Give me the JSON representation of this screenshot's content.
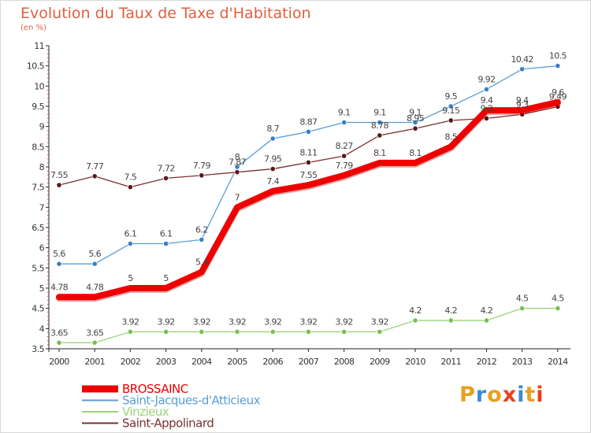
{
  "title": "Evolution du Taux de Taxe d'Habitation",
  "subtitle": "(en %)",
  "logo": {
    "text": "Proxiti",
    "letter_colors": [
      "#e8a020",
      "#3a8ad8",
      "#e8a020",
      "#e8401e",
      "#3a8ad8",
      "#e8a020",
      "#e8401e"
    ]
  },
  "chart_data": {
    "type": "line",
    "title": "Evolution du Taux de Taxe d'Habitation",
    "subtitle": "(en %)",
    "xlabel": "",
    "ylabel": "",
    "ylim": [
      3.5,
      11
    ],
    "grid": false,
    "legend_position": "bottom-left",
    "x": [
      "2000",
      "2001",
      "2002",
      "2003",
      "2004",
      "2005",
      "2006",
      "2007",
      "2008",
      "2009",
      "2010",
      "2011",
      "2012",
      "2013",
      "2014"
    ],
    "yticks": [
      "3.5",
      "4",
      "4.5",
      "5",
      "5.5",
      "6",
      "6.5",
      "7",
      "7.5",
      "8",
      "8.5",
      "9",
      "9.5",
      "10",
      "10.5",
      "11"
    ],
    "series": [
      {
        "name": "Saint-Jacques-d'Atticieux",
        "color": "#5a9ed6",
        "point_color": "#3a80c8",
        "width": 1.3,
        "values": [
          5.6,
          5.6,
          6.1,
          6.1,
          6.2,
          8,
          8.7,
          8.87,
          9.1,
          9.1,
          9.1,
          9.5,
          9.92,
          10.42,
          10.5
        ],
        "labels": [
          "5.6",
          "5.6",
          "6.1",
          "6.1",
          "6.2",
          "8",
          "8.7",
          "8.87",
          "9.1",
          "9.1",
          "9.1",
          "9.5",
          "9.92",
          "10.42",
          "10.5"
        ]
      },
      {
        "name": "Vinzieux",
        "color": "#99d27a",
        "point_color": "#78c04e",
        "width": 1.3,
        "values": [
          3.65,
          3.65,
          3.92,
          3.92,
          3.92,
          3.92,
          3.92,
          3.92,
          3.92,
          3.92,
          4.2,
          4.2,
          4.2,
          4.5,
          4.5
        ],
        "labels": [
          "3.65",
          "3.65",
          "3.92",
          "3.92",
          "3.92",
          "3.92",
          "3.92",
          "3.92",
          "3.92",
          "3.92",
          "4.2",
          "4.2",
          "4.2",
          "4.5",
          "4.5"
        ]
      },
      {
        "name": "Saint-Appolinard",
        "color": "#7a3030",
        "point_color": "#5a1818",
        "width": 1.3,
        "values": [
          7.55,
          7.77,
          7.5,
          7.72,
          7.79,
          7.87,
          7.95,
          8.11,
          8.27,
          8.78,
          8.95,
          9.15,
          9.2,
          9.3,
          9.49
        ],
        "labels": [
          "7.55",
          "7.77",
          "7.5",
          "7.72",
          "7.79",
          "7.87",
          "7.95",
          "8.11",
          "8.27",
          "8.78",
          "8.95",
          "9.15",
          "9.2",
          "9.3",
          "9.49"
        ]
      },
      {
        "name": "BROSSAINC",
        "color": "#ee0000",
        "point_color": "#ee0000",
        "width": 8,
        "values": [
          4.78,
          4.78,
          5,
          5,
          5.4,
          7,
          7.4,
          7.55,
          7.79,
          8.1,
          8.1,
          8.5,
          9.4,
          9.4,
          9.6
        ],
        "labels": [
          "4.78",
          "4.78",
          "5",
          "5",
          "5.4",
          "7",
          "7.4",
          "7.55",
          "7.79",
          "8.1",
          "8.1",
          "8.5",
          "9.4",
          "9.4",
          "9.6"
        ]
      }
    ],
    "legend_order": [
      "BROSSAINC",
      "Saint-Jacques-d'Atticieux",
      "Vinzieux",
      "Saint-Appolinard"
    ]
  }
}
